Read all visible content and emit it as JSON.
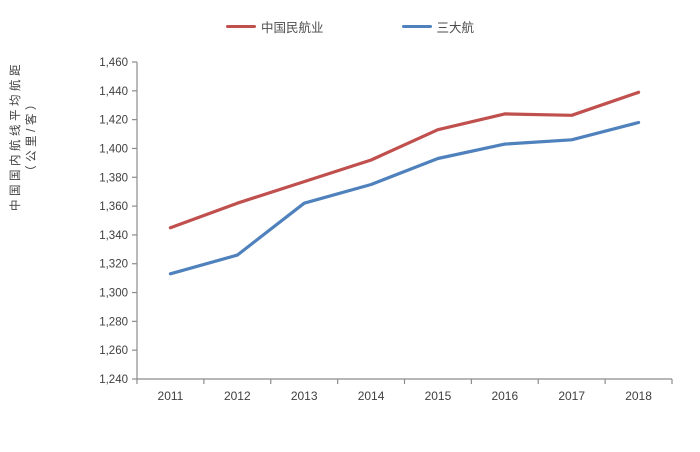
{
  "legend": {
    "items": [
      {
        "label": "中国民航业",
        "color": "#C0504D"
      },
      {
        "label": "三大航",
        "color": "#4F81BD"
      }
    ]
  },
  "y_axis_title": {
    "line1": "中国国内航线平均航距",
    "line2": "（公里/客）"
  },
  "chart_data": {
    "type": "line",
    "title": "",
    "xlabel": "",
    "ylabel": "中国国内航线平均航距（公里/客）",
    "categories": [
      "2011",
      "2012",
      "2013",
      "2014",
      "2015",
      "2016",
      "2017",
      "2018"
    ],
    "series": [
      {
        "name": "中国民航业",
        "color": "#C0504D",
        "values": [
          1345,
          1362,
          1377,
          1392,
          1413,
          1424,
          1423,
          1439
        ]
      },
      {
        "name": "三大航",
        "color": "#4F81BD",
        "values": [
          1313,
          1326,
          1362,
          1375,
          1393,
          1403,
          1406,
          1418
        ]
      }
    ],
    "ylim": [
      1240,
      1460
    ],
    "y_tick_step": 20,
    "y_tick_labels": [
      "1,240",
      "1,260",
      "1,280",
      "1,300",
      "1,320",
      "1,340",
      "1,360",
      "1,380",
      "1,400",
      "1,420",
      "1,440",
      "1,460"
    ],
    "grid": false,
    "legend_position": "top",
    "axis_color": "#8C8C8C",
    "text_color": "#404040",
    "line_width": 3.2
  }
}
